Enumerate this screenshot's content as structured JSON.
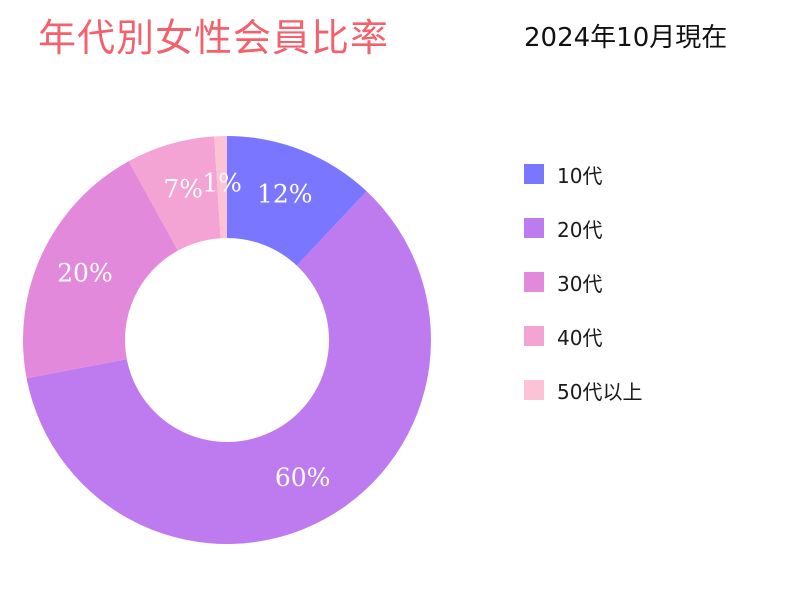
{
  "header": {
    "title": "年代別女性会員比率",
    "as_of": "2024年10月現在"
  },
  "colors": {
    "title": "#f2616c",
    "text": "#111111",
    "slice_label": "#ffffff"
  },
  "chart_data": {
    "type": "pie",
    "donut": true,
    "title": "年代別女性会員比率",
    "subtitle": "2024年10月現在",
    "categories": [
      "10代",
      "20代",
      "30代",
      "40代",
      "50代以上"
    ],
    "values": [
      12,
      60,
      20,
      7,
      1
    ],
    "value_labels": [
      "12%",
      "60%",
      "20%",
      "7%",
      "1%"
    ],
    "colors": [
      "#7b76ff",
      "#be7bf0",
      "#e289dc",
      "#f3a3d4",
      "#fcc3d6"
    ],
    "legend_position": "right",
    "start_angle": "top",
    "direction": "clockwise"
  }
}
